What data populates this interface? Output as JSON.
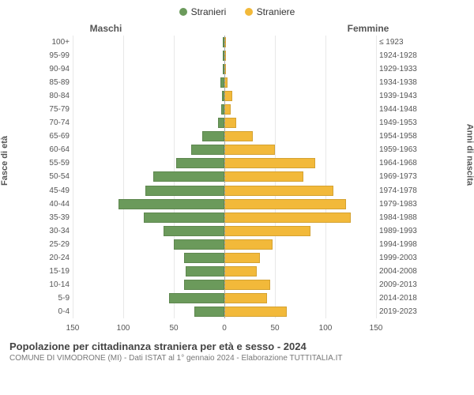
{
  "chart": {
    "type": "population-pyramid",
    "background_color": "#ffffff",
    "grid_color": "#e8e8e8",
    "bar_border": "rgba(0,0,0,0.12)",
    "legend": [
      {
        "label": "Stranieri",
        "color": "#6b9a5b"
      },
      {
        "label": "Straniere",
        "color": "#f2b93a"
      }
    ],
    "header_left": "Maschi",
    "header_right": "Femmine",
    "yaxis_left_title": "Fasce di età",
    "yaxis_right_title": "Anni di nascita",
    "xmax": 150,
    "xticks_left": [
      150,
      100,
      50,
      0
    ],
    "xticks_right": [
      50,
      100,
      150
    ],
    "age_bands": [
      {
        "age": "100+",
        "birth": "≤ 1923",
        "m": 0,
        "f": 0
      },
      {
        "age": "95-99",
        "birth": "1924-1928",
        "m": 0,
        "f": 0
      },
      {
        "age": "90-94",
        "birth": "1929-1933",
        "m": 0,
        "f": 0
      },
      {
        "age": "85-89",
        "birth": "1934-1938",
        "m": 4,
        "f": 3
      },
      {
        "age": "80-84",
        "birth": "1939-1943",
        "m": 2,
        "f": 8
      },
      {
        "age": "75-79",
        "birth": "1944-1948",
        "m": 3,
        "f": 6
      },
      {
        "age": "70-74",
        "birth": "1949-1953",
        "m": 6,
        "f": 12
      },
      {
        "age": "65-69",
        "birth": "1954-1958",
        "m": 22,
        "f": 28
      },
      {
        "age": "60-64",
        "birth": "1959-1963",
        "m": 33,
        "f": 50
      },
      {
        "age": "55-59",
        "birth": "1964-1968",
        "m": 48,
        "f": 90
      },
      {
        "age": "50-54",
        "birth": "1969-1973",
        "m": 70,
        "f": 78
      },
      {
        "age": "45-49",
        "birth": "1974-1978",
        "m": 78,
        "f": 108
      },
      {
        "age": "40-44",
        "birth": "1979-1983",
        "m": 105,
        "f": 120
      },
      {
        "age": "35-39",
        "birth": "1984-1988",
        "m": 80,
        "f": 125
      },
      {
        "age": "30-34",
        "birth": "1989-1993",
        "m": 60,
        "f": 85
      },
      {
        "age": "25-29",
        "birth": "1994-1998",
        "m": 50,
        "f": 48
      },
      {
        "age": "20-24",
        "birth": "1999-2003",
        "m": 40,
        "f": 35
      },
      {
        "age": "15-19",
        "birth": "2004-2008",
        "m": 38,
        "f": 32
      },
      {
        "age": "10-14",
        "birth": "2009-2013",
        "m": 40,
        "f": 45
      },
      {
        "age": "5-9",
        "birth": "2014-2018",
        "m": 55,
        "f": 42
      },
      {
        "age": "0-4",
        "birth": "2019-2023",
        "m": 30,
        "f": 62
      }
    ]
  },
  "footer": {
    "title": "Popolazione per cittadinanza straniera per età e sesso - 2024",
    "subtitle": "COMUNE DI VIMODRONE (MI) - Dati ISTAT al 1° gennaio 2024 - Elaborazione TUTTITALIA.IT"
  }
}
